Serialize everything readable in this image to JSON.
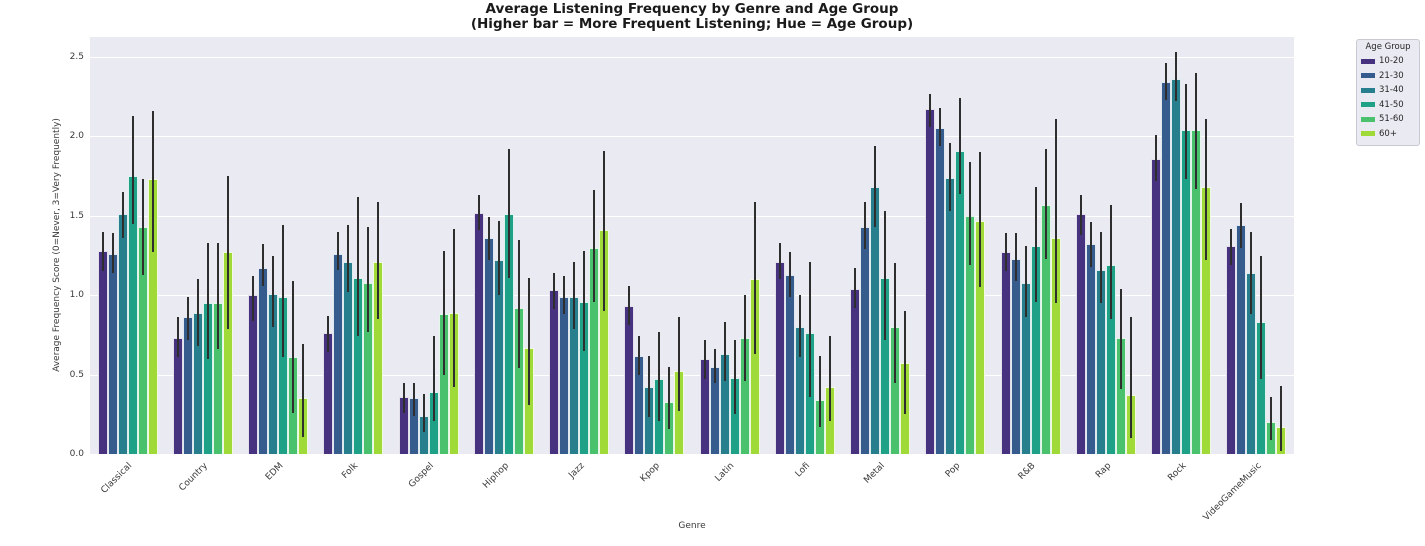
{
  "colors": {
    "figure_bg": "#ffffff",
    "axes_bg": "#eaeaf2",
    "grid": "#ffffff",
    "errorbar": "#2e2e2e",
    "text": "#262626"
  },
  "chart_data": {
    "type": "bar",
    "title": "Average Listening Frequency by Genre and Age Group",
    "subtitle": "(Higher bar = More Frequent Listening; Hue = Age Group)",
    "xlabel": "Genre",
    "ylabel": "Average Frequency Score (0=Never, 3=Very Frequently)",
    "ylim": [
      0,
      2.63
    ],
    "yticks": [
      "0.0",
      "0.5",
      "1.0",
      "1.5",
      "2.0",
      "2.5"
    ],
    "grid": true,
    "legend_title": "Age Group",
    "legend_position": "upper-right outside axes",
    "error_bars": true,
    "categories": [
      "Classical",
      "Country",
      "EDM",
      "Folk",
      "Gospel",
      "Hiphop",
      "Jazz",
      "Kpop",
      "Latin",
      "Lofi",
      "Metal",
      "Pop",
      "R&B",
      "Rap",
      "Rock",
      "VideoGameMusic"
    ],
    "series": [
      {
        "name": "10-20",
        "color": "#46327e",
        "values": [
          1.28,
          0.73,
          1.0,
          0.76,
          0.36,
          1.52,
          1.03,
          0.93,
          0.6,
          1.21,
          1.04,
          2.17,
          1.27,
          1.51,
          1.86,
          1.31
        ],
        "ci_low": [
          1.15,
          0.61,
          0.84,
          0.64,
          0.26,
          1.41,
          0.91,
          0.81,
          0.47,
          1.1,
          0.92,
          2.06,
          1.15,
          1.38,
          1.72,
          1.19
        ],
        "ci_high": [
          1.4,
          0.86,
          1.12,
          0.87,
          0.45,
          1.63,
          1.14,
          1.06,
          0.72,
          1.33,
          1.17,
          2.27,
          1.39,
          1.63,
          2.01,
          1.42
        ]
      },
      {
        "name": "21-30",
        "color": "#365c8d",
        "values": [
          1.26,
          0.86,
          1.17,
          1.26,
          0.35,
          1.36,
          0.99,
          0.62,
          0.55,
          1.13,
          1.43,
          2.05,
          1.23,
          1.32,
          2.34,
          1.44
        ],
        "ci_low": [
          1.14,
          0.72,
          1.06,
          1.16,
          0.24,
          1.22,
          0.88,
          0.5,
          0.45,
          0.99,
          1.29,
          1.94,
          1.09,
          1.18,
          2.23,
          1.3
        ],
        "ci_high": [
          1.39,
          0.99,
          1.32,
          1.4,
          0.45,
          1.49,
          1.12,
          0.74,
          0.66,
          1.27,
          1.59,
          2.18,
          1.39,
          1.46,
          2.46,
          1.58
        ]
      },
      {
        "name": "31-40",
        "color": "#277f8e",
        "values": [
          1.51,
          0.89,
          1.01,
          1.21,
          0.24,
          1.22,
          0.99,
          0.42,
          0.63,
          0.8,
          1.68,
          1.74,
          1.08,
          1.16,
          2.36,
          1.14
        ],
        "ci_low": [
          1.36,
          0.68,
          0.8,
          1.02,
          0.14,
          1.0,
          0.79,
          0.23,
          0.46,
          0.61,
          1.43,
          1.53,
          0.86,
          0.95,
          2.22,
          0.88
        ],
        "ci_high": [
          1.65,
          1.1,
          1.25,
          1.44,
          0.38,
          1.47,
          1.21,
          0.62,
          0.83,
          1.0,
          1.94,
          1.96,
          1.31,
          1.4,
          2.53,
          1.4
        ]
      },
      {
        "name": "41-50",
        "color": "#1fa187",
        "values": [
          1.75,
          0.95,
          0.99,
          1.11,
          0.39,
          1.51,
          0.96,
          0.47,
          0.48,
          0.76,
          1.11,
          1.91,
          1.31,
          1.19,
          2.04,
          0.83
        ],
        "ci_low": [
          1.45,
          0.6,
          0.61,
          0.74,
          0.21,
          1.11,
          0.65,
          0.21,
          0.25,
          0.36,
          0.72,
          1.64,
          0.96,
          0.85,
          1.73,
          0.47
        ],
        "ci_high": [
          2.13,
          1.33,
          1.44,
          1.62,
          0.74,
          1.92,
          1.28,
          0.77,
          0.72,
          1.21,
          1.53,
          2.24,
          1.68,
          1.57,
          2.33,
          1.25
        ]
      },
      {
        "name": "51-60",
        "color": "#4ac16d",
        "values": [
          1.43,
          0.95,
          0.61,
          1.08,
          0.88,
          0.92,
          1.3,
          0.33,
          0.73,
          0.34,
          0.8,
          1.5,
          1.57,
          0.73,
          2.04,
          0.2
        ],
        "ci_low": [
          1.13,
          0.66,
          0.26,
          0.77,
          0.5,
          0.54,
          0.96,
          0.16,
          0.46,
          0.17,
          0.45,
          1.19,
          1.23,
          0.41,
          1.67,
          0.09
        ],
        "ci_high": [
          1.73,
          1.33,
          1.09,
          1.43,
          1.28,
          1.35,
          1.66,
          0.55,
          1.0,
          0.62,
          1.2,
          1.84,
          1.92,
          1.04,
          2.4,
          0.36
        ]
      },
      {
        "name": "60+",
        "color": "#a0da39",
        "values": [
          1.73,
          1.27,
          0.35,
          1.21,
          0.89,
          0.67,
          1.41,
          0.52,
          1.1,
          0.42,
          0.57,
          1.47,
          1.36,
          0.37,
          1.68,
          0.17
        ],
        "ci_low": [
          1.27,
          0.79,
          0.11,
          0.85,
          0.42,
          0.31,
          0.9,
          0.27,
          0.63,
          0.21,
          0.25,
          1.05,
          0.95,
          0.1,
          1.22,
          0.02
        ],
        "ci_high": [
          2.16,
          1.75,
          0.69,
          1.59,
          1.42,
          1.11,
          1.91,
          0.86,
          1.59,
          0.74,
          0.9,
          1.9,
          2.11,
          0.86,
          2.11,
          0.43
        ]
      }
    ]
  }
}
